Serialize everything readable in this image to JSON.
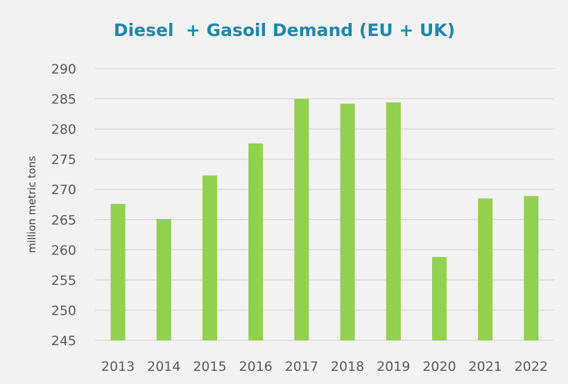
{
  "chart_data": {
    "type": "bar",
    "title": "Diesel  + Gasoil Demand (EU + UK)",
    "xlabel": "",
    "ylabel": "million metric tons",
    "categories": [
      "2013",
      "2014",
      "2015",
      "2016",
      "2017",
      "2018",
      "2019",
      "2020",
      "2021",
      "2022"
    ],
    "values": [
      267.6,
      265.1,
      272.3,
      277.6,
      285.0,
      284.2,
      284.4,
      258.8,
      268.5,
      268.9
    ],
    "ylim": [
      245,
      290
    ],
    "yticks": [
      245,
      250,
      255,
      260,
      265,
      270,
      275,
      280,
      285,
      290
    ],
    "grid": true,
    "legend": "none",
    "bar_color": "#92d050",
    "grid_color": "#d9d9d9"
  }
}
